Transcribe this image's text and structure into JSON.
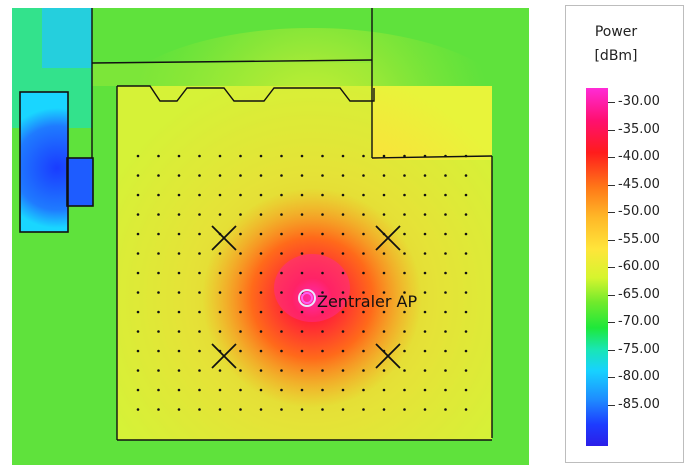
{
  "map": {
    "ap_label": "Zentraler AP",
    "colors": {
      "background_green": "#5fe23c",
      "floor_yellow": "#ffd93a",
      "hot_red": "#ff1a3a",
      "magenta_core": "#ff2bd6",
      "blue_room": "#1a3cff",
      "cyan_edge": "#19e6b4"
    }
  },
  "legend": {
    "title_line1": "Power",
    "title_line2": "[dBm]",
    "ticks": [
      "-30.00",
      "-35.00",
      "-40.00",
      "-45.00",
      "-50.00",
      "-55.00",
      "-60.00",
      "-65.00",
      "-70.00",
      "-75.00",
      "-80.00",
      "-85.00"
    ]
  }
}
